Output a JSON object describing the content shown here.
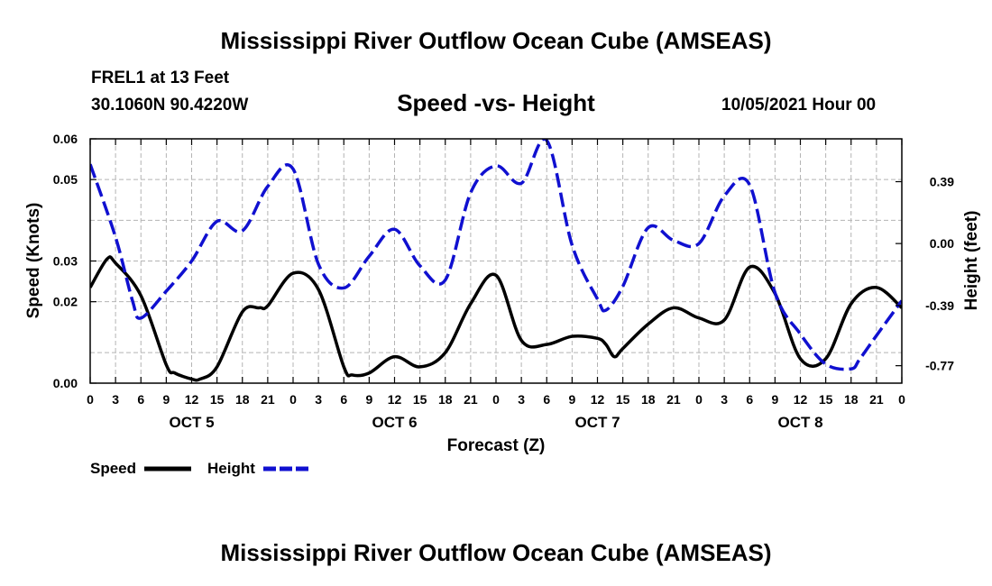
{
  "page": {
    "title_top": "Mississippi River Outflow Ocean Cube (AMSEAS)",
    "title_bottom": "Mississippi River Outflow Ocean Cube (AMSEAS)",
    "station": "FREL1 at 13 Feet",
    "coords": "30.1060N  90.4220W",
    "subtitle": "Speed -vs- Height",
    "datetime": "10/05/2021 Hour 00"
  },
  "colors": {
    "speed": "#000000",
    "height": "#1010d0",
    "grid": "#b4b4b4"
  },
  "chart_data": {
    "type": "line",
    "title": "Speed -vs- Height",
    "xlabel": "Forecast (Z)",
    "ylabel": "Speed (Knots)",
    "y2label": "Height (feet)",
    "xlim": [
      0,
      96
    ],
    "ylim": [
      0,
      0.06
    ],
    "y2lim": [
      -0.88,
      0.66
    ],
    "x_tick_labels": [
      "0",
      "3",
      "6",
      "9",
      "12",
      "15",
      "18",
      "21",
      "0",
      "3",
      "6",
      "9",
      "12",
      "15",
      "18",
      "21",
      "0",
      "3",
      "6",
      "9",
      "12",
      "15",
      "18",
      "21",
      "0",
      "3",
      "6",
      "9",
      "12",
      "15",
      "18",
      "21",
      "0"
    ],
    "y_ticks": [
      0,
      0.02,
      0.03,
      0.05,
      0.06
    ],
    "y_tick_labels": [
      "0.00",
      "0.02",
      "0.03",
      "0.05",
      "0.06"
    ],
    "y2_ticks": [
      0.39,
      0.0,
      -0.39,
      -0.77
    ],
    "y2_tick_labels": [
      "0.39",
      "0.00",
      "-0.39",
      "-0.77"
    ],
    "day_labels": [
      {
        "x": 12,
        "label": "OCT 5"
      },
      {
        "x": 36,
        "label": "OCT 6"
      },
      {
        "x": 60,
        "label": "OCT 7"
      },
      {
        "x": 84,
        "label": "OCT 8"
      }
    ],
    "legend": [
      {
        "name": "Speed",
        "style": "solid"
      },
      {
        "name": "Height",
        "style": "dashed"
      }
    ],
    "series": [
      {
        "name": "Speed",
        "axis": "left",
        "style": "solid",
        "x": [
          0,
          2,
          3,
          6,
          9,
          10,
          12,
          13,
          15,
          18,
          20,
          21,
          24,
          27,
          30,
          31,
          33,
          36,
          39,
          42,
          45,
          48,
          51,
          54,
          57,
          60,
          61,
          62,
          63,
          66,
          69,
          72,
          75,
          78,
          81,
          84,
          87,
          90,
          93,
          96
        ],
        "y": [
          0.0235,
          0.0305,
          0.0295,
          0.0215,
          0.0045,
          0.0025,
          0.001,
          0.001,
          0.004,
          0.0175,
          0.0185,
          0.019,
          0.027,
          0.023,
          0.004,
          0.002,
          0.0025,
          0.0065,
          0.004,
          0.0075,
          0.0195,
          0.0265,
          0.0105,
          0.0095,
          0.0115,
          0.011,
          0.0095,
          0.0065,
          0.0085,
          0.0145,
          0.0185,
          0.016,
          0.0155,
          0.0285,
          0.022,
          0.006,
          0.006,
          0.0195,
          0.0235,
          0.0185
        ]
      },
      {
        "name": "Height",
        "axis": "right",
        "style": "dashed",
        "x": [
          0,
          3,
          5,
          6,
          9,
          12,
          15,
          18,
          21,
          24,
          27,
          30,
          33,
          36,
          39,
          42,
          45,
          48,
          51,
          54,
          57,
          60,
          61,
          63,
          66,
          69,
          72,
          75,
          78,
          81,
          84,
          87,
          90,
          91,
          93,
          96
        ],
        "y": [
          0.5,
          0.04,
          -0.36,
          -0.47,
          -0.3,
          -0.11,
          0.14,
          0.08,
          0.36,
          0.47,
          -0.13,
          -0.28,
          -0.08,
          0.09,
          -0.14,
          -0.23,
          0.32,
          0.49,
          0.38,
          0.65,
          -0.01,
          -0.35,
          -0.42,
          -0.27,
          0.1,
          0.02,
          0.0,
          0.3,
          0.37,
          -0.31,
          -0.57,
          -0.76,
          -0.79,
          -0.73,
          -0.58,
          -0.36
        ]
      }
    ]
  }
}
